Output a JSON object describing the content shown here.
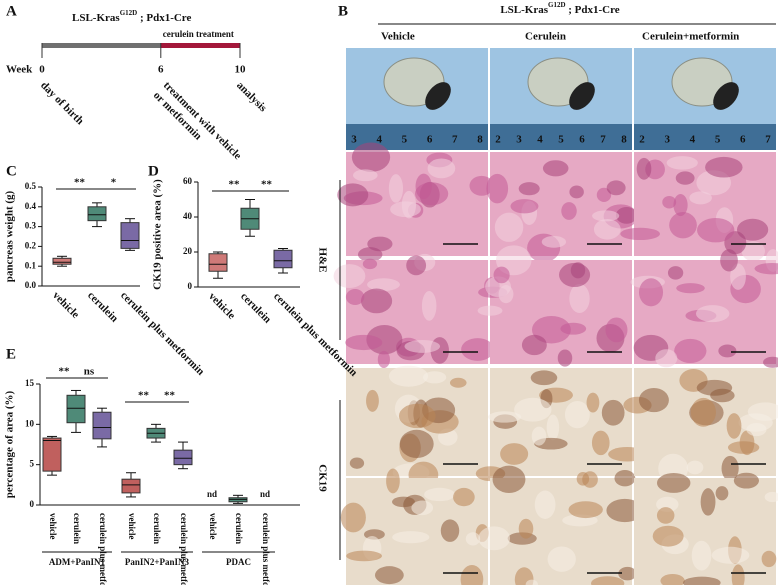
{
  "timeline": {
    "label": "A",
    "strain": {
      "prefix": "LSL-Kras",
      "superscript": "G12D",
      "suffix": " ; Pdx1-Cre"
    },
    "axis_label": "Week",
    "weeks": [
      0,
      6,
      10
    ],
    "period_label": "cerulein treatment",
    "events": [
      "day of birth",
      "treatment with vehicle",
      "or metformin",
      "analysis"
    ]
  },
  "histology": {
    "label": "B",
    "strain": {
      "prefix": "LSL-Kras",
      "superscript": "G12D",
      "suffix": " ; Pdx1-Cre"
    },
    "columns": [
      "Vehicle",
      "Cerulein",
      "Cerulein+metformin"
    ],
    "stains": [
      "H&E",
      "CK19"
    ],
    "ruler_numbers": [
      [
        "3",
        "4",
        "5",
        "6",
        "7",
        "8"
      ],
      [
        "2",
        "3",
        "4",
        "5",
        "6",
        "7",
        "8"
      ],
      [
        "2",
        "3",
        "4",
        "5",
        "6",
        "7"
      ]
    ]
  },
  "chart_data": [
    {
      "type": "box",
      "label": "C",
      "y_label": "pancreas weight (g)",
      "categories": [
        "vehicle",
        "cerulein",
        "cerulein plus metformin"
      ],
      "colors": [
        "#cf7a78",
        "#4f8a78",
        "#7a6aa5"
      ],
      "min": [
        0.1,
        0.3,
        0.18
      ],
      "q1": [
        0.11,
        0.33,
        0.19
      ],
      "median": [
        0.12,
        0.36,
        0.23
      ],
      "q3": [
        0.14,
        0.4,
        0.32
      ],
      "max": [
        0.15,
        0.42,
        0.34
      ],
      "ylim": [
        0,
        0.5
      ],
      "yticks": [
        {
          "value": 0,
          "label": "0.0"
        },
        0.1,
        0.2,
        0.3,
        0.4,
        0.5
      ],
      "annotations": [
        "**",
        "*"
      ]
    },
    {
      "type": "box",
      "label": "D",
      "y_label": "CK19 positive area (%)",
      "categories": [
        "vehicle",
        "cerulein",
        "cerulein plus metformin"
      ],
      "colors": [
        "#cf7a78",
        "#4f8a78",
        "#7a6aa5"
      ],
      "min": [
        5,
        29,
        8
      ],
      "q1": [
        9,
        33,
        11
      ],
      "median": [
        13,
        39,
        15
      ],
      "q3": [
        19,
        45,
        21
      ],
      "max": [
        20,
        50,
        22
      ],
      "ylim": [
        0,
        60
      ],
      "yticks": [
        0,
        20,
        40,
        60
      ],
      "annotations": [
        "**",
        "**"
      ]
    },
    {
      "type": "box",
      "label": "E",
      "y_label": "percentage of area (%)",
      "categories": [
        "vehicle",
        "cerulein",
        "cerulein plus metformin",
        "vehicle",
        "cerulein",
        "cerulein plus metformin",
        "vehicle",
        "cerulein",
        "cerulein plus metformin"
      ],
      "groups": [
        "ADM+PanIN1",
        "PanIN2+PanIN3",
        "PDAC"
      ],
      "colors": [
        "#c0605e",
        "#4f8a78",
        "#7a6aa5",
        "#c0605e",
        "#4f8a78",
        "#7a6aa5",
        "#c0605e",
        "#4f8a78",
        "#7a6aa5"
      ],
      "min": [
        3.7,
        9.0,
        7.2,
        1.0,
        7.8,
        4.5,
        null,
        0.2,
        null
      ],
      "q1": [
        4.2,
        10.2,
        8.2,
        1.5,
        8.3,
        5.0,
        null,
        0.4,
        null
      ],
      "median": [
        8.0,
        12.0,
        9.6,
        2.5,
        8.9,
        5.8,
        null,
        0.7,
        null
      ],
      "q3": [
        8.3,
        13.6,
        11.5,
        3.2,
        9.5,
        6.8,
        null,
        0.9,
        null
      ],
      "max": [
        8.5,
        14.2,
        12.0,
        4.0,
        10.0,
        7.8,
        null,
        1.2,
        null
      ],
      "value_labels": [
        null,
        null,
        null,
        null,
        null,
        null,
        "nd",
        null,
        "nd"
      ],
      "ylim": [
        0,
        15
      ],
      "yticks": [
        0,
        5,
        10,
        15
      ],
      "annotations": [
        "**",
        "ns",
        "**",
        "**"
      ]
    }
  ]
}
